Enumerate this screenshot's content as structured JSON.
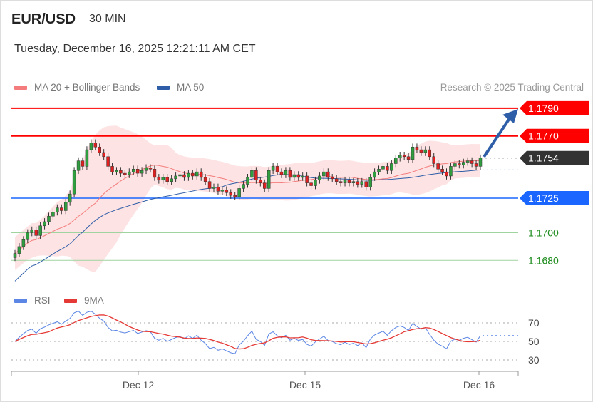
{
  "header": {
    "symbol": "EUR/USD",
    "timeframe": "30 MIN",
    "datetime": "Tuesday, December 16, 2025 12:21:11 AM CET"
  },
  "legend": {
    "ma20": "MA 20 + Bollinger Bands",
    "ma50": "MA 50",
    "ma20_color": "#f47c7c",
    "ma50_color": "#2f5ea8"
  },
  "credit": "Research © 2025 Trading Central",
  "rsi_legend": {
    "rsi": "RSI",
    "ma": "9MA",
    "rsi_color": "#5b86e5",
    "ma_color": "#e53935"
  },
  "chart_data": [
    {
      "type": "candlestick",
      "ylim": [
        1.1665,
        1.18
      ],
      "closes": [
        1.1685,
        1.169,
        1.1695,
        1.17,
        1.1702,
        1.1698,
        1.1705,
        1.1708,
        1.1712,
        1.1715,
        1.1718,
        1.1716,
        1.1722,
        1.1728,
        1.1745,
        1.1752,
        1.1748,
        1.176,
        1.1765,
        1.1762,
        1.1758,
        1.1755,
        1.1748,
        1.1744,
        1.1745,
        1.1743,
        1.1742,
        1.1744,
        1.1746,
        1.1743,
        1.1745,
        1.1747,
        1.1746,
        1.174,
        1.1738,
        1.174,
        1.1737,
        1.1739,
        1.1741,
        1.1742,
        1.174,
        1.1743,
        1.1741,
        1.1744,
        1.174,
        1.1737,
        1.1732,
        1.1733,
        1.173,
        1.1731,
        1.1729,
        1.1727,
        1.1726,
        1.1732,
        1.1735,
        1.174,
        1.1745,
        1.1738,
        1.1736,
        1.1732,
        1.1745,
        1.1748,
        1.1744,
        1.1742,
        1.1745,
        1.174,
        1.1742,
        1.174,
        1.1741,
        1.1736,
        1.1734,
        1.1738,
        1.1741,
        1.1744,
        1.174,
        1.1739,
        1.1737,
        1.1736,
        1.1738,
        1.1736,
        1.1737,
        1.1735,
        1.1737,
        1.1733,
        1.174,
        1.1744,
        1.1746,
        1.1748,
        1.1745,
        1.175,
        1.1754,
        1.1756,
        1.1755,
        1.1753,
        1.1762,
        1.176,
        1.1758,
        1.176,
        1.1755,
        1.175,
        1.1746,
        1.1744,
        1.1741,
        1.1748,
        1.175,
        1.1749,
        1.1751,
        1.1752,
        1.175,
        1.1748,
        1.1754
      ],
      "x_ticks": [
        "Dec 12",
        "Dec 15",
        "Dec 16"
      ],
      "levels": [
        {
          "value": "1.1790",
          "kind": "resistance",
          "color": "#ff0000"
        },
        {
          "value": "1.1770",
          "kind": "resistance",
          "color": "#ff0000"
        },
        {
          "value": "1.1754",
          "kind": "last",
          "color": "#333333"
        },
        {
          "value": "1.1725",
          "kind": "pivot",
          "color": "#1a66ff"
        },
        {
          "value": "1.1700",
          "kind": "support",
          "color": "#1a8a1a"
        },
        {
          "value": "1.1680",
          "kind": "support",
          "color": "#1a8a1a"
        }
      ],
      "target_arrow": "up to 1.1790"
    },
    {
      "type": "line",
      "name": "RSI",
      "ylim": [
        20,
        80
      ],
      "y_ticks": [
        "70",
        "50",
        "30"
      ]
    }
  ]
}
